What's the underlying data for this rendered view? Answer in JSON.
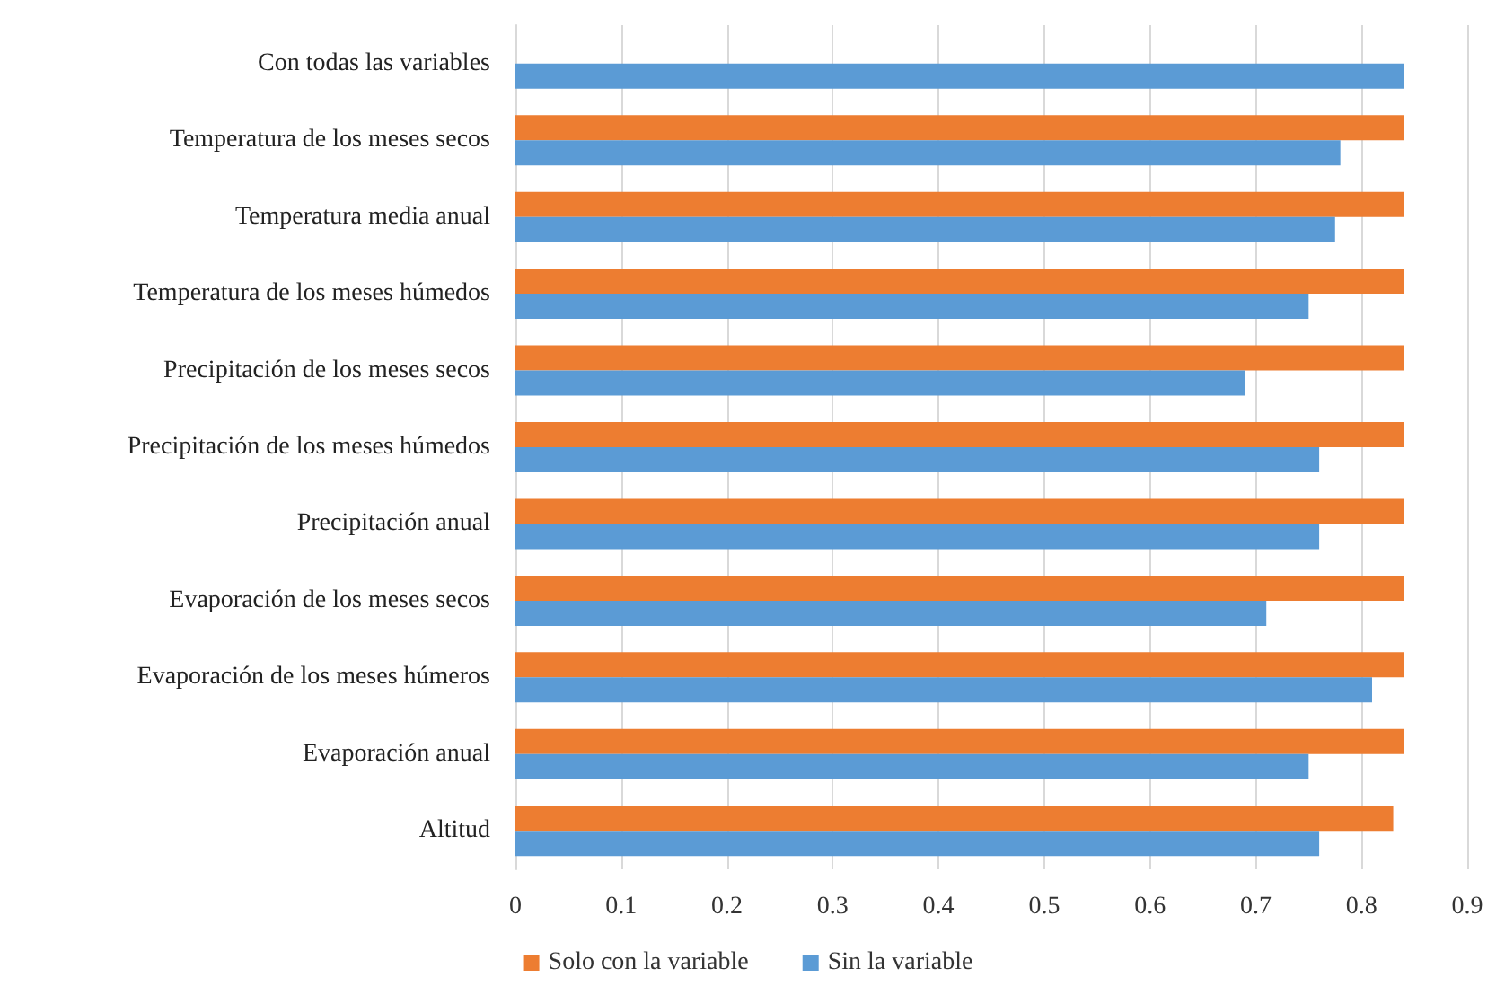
{
  "chart_data": {
    "type": "bar",
    "orientation": "horizontal",
    "categories": [
      "Con todas las variables",
      "Temperatura de los meses secos",
      "Temperatura media anual",
      "Temperatura de los meses húmedos",
      "Precipitación de los meses secos",
      "Precipitación de los meses húmedos",
      "Precipitación anual",
      "Evaporación de los meses secos",
      "Evaporación de los meses húmeros",
      "Evaporación anual",
      "Altitud"
    ],
    "series": [
      {
        "name": "Solo con la variable",
        "color": "#ed7d31",
        "values": [
          null,
          0.84,
          0.84,
          0.84,
          0.84,
          0.84,
          0.84,
          0.84,
          0.84,
          0.84,
          0.83
        ]
      },
      {
        "name": "Sin la variable",
        "color": "#5b9bd5",
        "values": [
          0.84,
          0.78,
          0.775,
          0.75,
          0.69,
          0.76,
          0.76,
          0.71,
          0.81,
          0.75,
          0.76
        ]
      }
    ],
    "xlim": [
      0,
      0.9
    ],
    "xticks": [
      0,
      0.1,
      0.2,
      0.3,
      0.4,
      0.5,
      0.6,
      0.7,
      0.8,
      0.9
    ],
    "grid": "x",
    "legend": "bottom"
  }
}
